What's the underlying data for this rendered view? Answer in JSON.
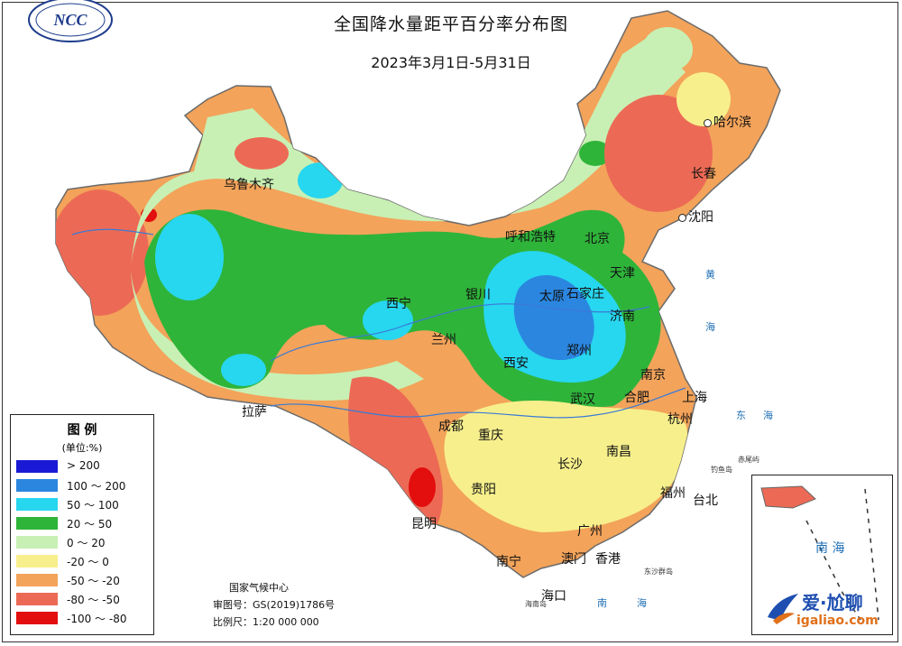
{
  "header": {
    "title": "全国降水量距平百分率分布图",
    "subtitle": "2023年3月1日-5月31日",
    "logo_text": "NCC"
  },
  "legend": {
    "title": "图 例",
    "unit": "(单位:%)",
    "items": [
      {
        "label": "> 200",
        "color": "#1a1ad6"
      },
      {
        "label": "100 ～ 200",
        "color": "#2b86e0"
      },
      {
        "label": "50 ～ 100",
        "color": "#27d6ef"
      },
      {
        "label": "20 ～ 50",
        "color": "#2fb43a"
      },
      {
        "label": "0 ～ 20",
        "color": "#c8f0b4"
      },
      {
        "label": "-20 ～ 0",
        "color": "#f7ef8c"
      },
      {
        "label": "-50 ～ -20",
        "color": "#f3a35a"
      },
      {
        "label": "-80 ～ -50",
        "color": "#ec6a55"
      },
      {
        "label": "-100 ～ -80",
        "color": "#e30e0e"
      }
    ]
  },
  "credits": {
    "agency": "国家气候中心",
    "approval": "审图号：GS(2019)1786号",
    "scale": "比例尺：1:20 000 000"
  },
  "cities": [
    {
      "name": "哈尔滨"
    },
    {
      "name": "长春"
    },
    {
      "name": "沈阳"
    },
    {
      "name": "乌鲁木齐"
    },
    {
      "name": "呼和浩特"
    },
    {
      "name": "北京"
    },
    {
      "name": "天津"
    },
    {
      "name": "石家庄"
    },
    {
      "name": "太原"
    },
    {
      "name": "银川"
    },
    {
      "name": "西宁"
    },
    {
      "name": "兰州"
    },
    {
      "name": "济南"
    },
    {
      "name": "郑州"
    },
    {
      "name": "西安"
    },
    {
      "name": "拉萨"
    },
    {
      "name": "南京"
    },
    {
      "name": "合肥"
    },
    {
      "name": "武汉"
    },
    {
      "name": "上海"
    },
    {
      "name": "杭州"
    },
    {
      "name": "成都"
    },
    {
      "name": "重庆"
    },
    {
      "name": "南昌"
    },
    {
      "name": "长沙"
    },
    {
      "name": "贵阳"
    },
    {
      "name": "昆明"
    },
    {
      "name": "福州"
    },
    {
      "name": "台北"
    },
    {
      "name": "广州"
    },
    {
      "name": "南宁"
    },
    {
      "name": "澳门"
    },
    {
      "name": "香港"
    },
    {
      "name": "海口"
    }
  ],
  "seas": [
    {
      "name": "黄"
    },
    {
      "name": "海"
    },
    {
      "name": "东"
    },
    {
      "name": "海"
    },
    {
      "name": "南"
    },
    {
      "name": "海"
    }
  ],
  "islands": {
    "diaoyu": "钓鱼岛",
    "chiwei": "赤尾屿",
    "dongsha": "东沙群岛",
    "hainan": "海南岛"
  },
  "inset": {
    "label": "南 海"
  },
  "watermark": {
    "text": "爱·尬聊",
    "url": "igaliao.com"
  }
}
